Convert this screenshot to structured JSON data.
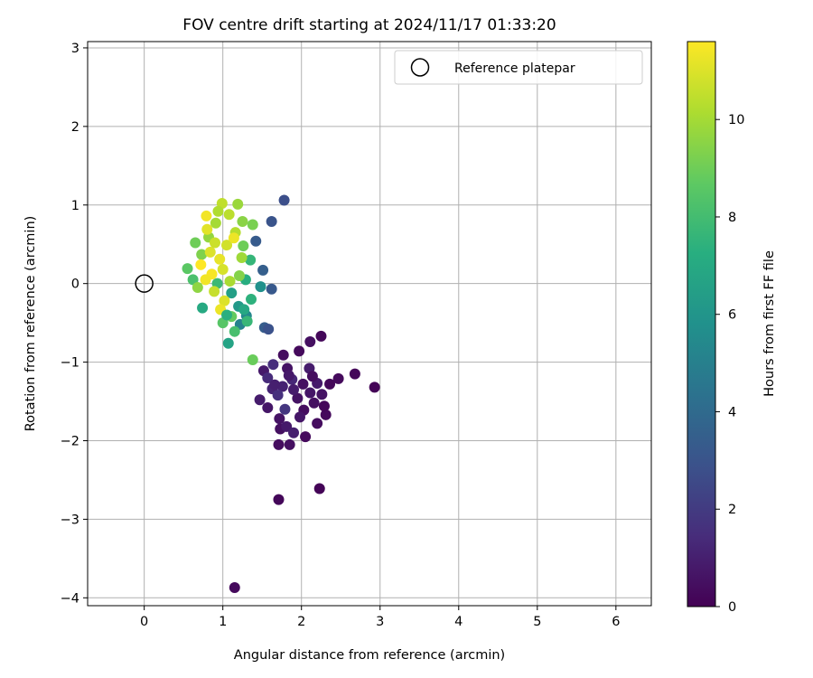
{
  "chart_data": {
    "type": "scatter",
    "title": "FOV centre drift starting at 2024/11/17 01:33:20",
    "xlabel": "Angular distance from reference (arcmin)",
    "ylabel": "Rotation from reference (arcmin)",
    "xlim": [
      -0.72,
      6.45
    ],
    "ylim": [
      -4.1,
      3.08
    ],
    "xticks": [
      0,
      1,
      2,
      3,
      4,
      5,
      6
    ],
    "yticks": [
      -4,
      -3,
      -2,
      -1,
      0,
      1,
      2,
      3
    ],
    "grid": true,
    "legend": {
      "placement": "upper-right",
      "entries": [
        {
          "label": "Reference platepar",
          "marker": "open-circle"
        }
      ]
    },
    "reference_point": {
      "x": 0,
      "y": 0
    },
    "colorbar": {
      "label": "Hours from first FF file",
      "range": [
        0,
        11.6
      ],
      "ticks": [
        0,
        2,
        4,
        6,
        8,
        10
      ],
      "colormap": "viridis"
    },
    "series": [
      {
        "marker": "filled-circle",
        "points": [
          [
            1.15,
            -3.87,
            0.3
          ],
          [
            1.71,
            -2.75,
            0.2
          ],
          [
            2.23,
            -2.61,
            0.1
          ],
          [
            2.93,
            -1.32,
            0.1
          ],
          [
            2.68,
            -1.15,
            0.2
          ],
          [
            2.47,
            -1.21,
            0.3
          ],
          [
            2.25,
            -0.67,
            0.2
          ],
          [
            2.11,
            -0.74,
            0.5
          ],
          [
            1.97,
            -0.86,
            0.3
          ],
          [
            1.77,
            -0.91,
            0.4
          ],
          [
            1.82,
            -1.08,
            0.6
          ],
          [
            1.64,
            -1.03,
            1.5
          ],
          [
            1.52,
            -1.11,
            0.8
          ],
          [
            1.47,
            -1.48,
            0.9
          ],
          [
            1.57,
            -1.58,
            0.7
          ],
          [
            1.72,
            -1.72,
            0.6
          ],
          [
            1.73,
            -1.85,
            0.5
          ],
          [
            1.81,
            -1.82,
            0.8
          ],
          [
            1.71,
            -2.05,
            0.4
          ],
          [
            1.85,
            -2.05,
            0.5
          ],
          [
            1.9,
            -1.9,
            1.0
          ],
          [
            2.05,
            -1.95,
            0.3
          ],
          [
            2.2,
            -1.78,
            0.4
          ],
          [
            2.31,
            -1.67,
            0.3
          ],
          [
            2.29,
            -1.56,
            0.2
          ],
          [
            2.16,
            -1.52,
            0.5
          ],
          [
            2.03,
            -1.61,
            0.4
          ],
          [
            1.95,
            -1.46,
            0.6
          ],
          [
            2.11,
            -1.39,
            0.7
          ],
          [
            2.2,
            -1.27,
            0.8
          ],
          [
            2.1,
            -1.08,
            0.9
          ],
          [
            2.02,
            -1.28,
            0.5
          ],
          [
            1.88,
            -1.22,
            1.3
          ],
          [
            1.76,
            -1.31,
            1.1
          ],
          [
            1.63,
            -1.34,
            1.2
          ],
          [
            1.57,
            -1.2,
            1.4
          ],
          [
            1.7,
            -1.42,
            1.6
          ],
          [
            1.79,
            -1.6,
            1.8
          ],
          [
            1.9,
            -1.35,
            0.9
          ],
          [
            2.14,
            -1.18,
            0.4
          ],
          [
            2.26,
            -1.41,
            0.6
          ],
          [
            1.98,
            -1.7,
            0.7
          ],
          [
            1.66,
            -1.29,
            1.0
          ],
          [
            1.84,
            -1.17,
            0.8
          ],
          [
            2.36,
            -1.28,
            0.2
          ],
          [
            1.78,
            1.06,
            2.8
          ],
          [
            1.62,
            0.79,
            3.0
          ],
          [
            1.42,
            0.54,
            3.3
          ],
          [
            1.51,
            0.17,
            3.5
          ],
          [
            1.62,
            -0.07,
            3.2
          ],
          [
            1.53,
            -0.56,
            3.4
          ],
          [
            1.58,
            -0.58,
            2.9
          ],
          [
            1.48,
            -0.04,
            5.8
          ],
          [
            1.38,
            -0.97,
            8.9
          ],
          [
            1.07,
            -0.76,
            6.7
          ],
          [
            0.74,
            -0.31,
            7.0
          ],
          [
            1.22,
            -0.52,
            5.1
          ],
          [
            1.3,
            -0.41,
            5.4
          ],
          [
            1.2,
            -0.29,
            6.2
          ],
          [
            1.11,
            -0.12,
            6.5
          ],
          [
            1.29,
            0.05,
            7.2
          ],
          [
            1.35,
            0.3,
            7.6
          ],
          [
            0.93,
            0.0,
            7.8
          ],
          [
            0.62,
            0.05,
            8.2
          ],
          [
            0.55,
            0.19,
            8.6
          ],
          [
            0.65,
            0.52,
            9.0
          ],
          [
            0.73,
            0.37,
            9.3
          ],
          [
            0.82,
            0.59,
            9.7
          ],
          [
            0.91,
            0.77,
            10.0
          ],
          [
            0.99,
            1.02,
            10.5
          ],
          [
            1.19,
            1.01,
            9.8
          ],
          [
            1.25,
            0.79,
            9.5
          ],
          [
            1.38,
            0.75,
            9.2
          ],
          [
            1.26,
            0.48,
            9.0
          ],
          [
            1.16,
            0.65,
            10.3
          ],
          [
            1.05,
            0.49,
            10.8
          ],
          [
            0.96,
            0.31,
            11.2
          ],
          [
            0.86,
            0.12,
            11.5
          ],
          [
            0.79,
            0.86,
            11.4
          ],
          [
            0.8,
            0.69,
            11.1
          ],
          [
            1.0,
            0.18,
            10.9
          ],
          [
            1.09,
            0.03,
            10.1
          ],
          [
            1.21,
            0.1,
            9.4
          ],
          [
            1.11,
            -0.42,
            8.8
          ],
          [
            1.0,
            -0.5,
            8.5
          ],
          [
            1.15,
            -0.61,
            8.1
          ],
          [
            1.31,
            -0.48,
            7.7
          ],
          [
            1.36,
            -0.2,
            7.4
          ],
          [
            1.02,
            -0.22,
            11.0
          ],
          [
            0.89,
            -0.1,
            10.6
          ],
          [
            0.94,
            0.92,
            10.2
          ],
          [
            1.08,
            0.88,
            10.4
          ],
          [
            1.14,
            0.58,
            11.3
          ],
          [
            1.24,
            0.33,
            9.9
          ],
          [
            0.72,
            0.24,
            11.6
          ],
          [
            0.84,
            0.4,
            11.0
          ],
          [
            0.97,
            -0.33,
            11.3
          ],
          [
            0.68,
            -0.05,
            9.6
          ],
          [
            1.05,
            -0.4,
            7.3
          ],
          [
            1.27,
            -0.33,
            6.9
          ],
          [
            0.9,
            0.52,
            10.7
          ],
          [
            0.78,
            0.05,
            11.4
          ]
        ]
      }
    ]
  }
}
